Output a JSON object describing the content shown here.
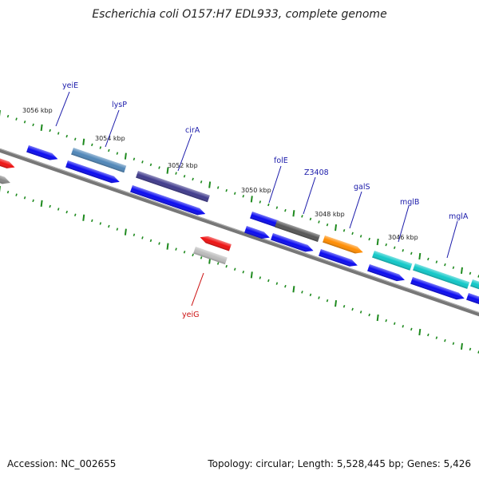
{
  "title": "Escherichia coli O157:H7 EDL933, complete genome",
  "accession": "Accession: NC_002655",
  "topology": "Topology: circular; Length: 5,528,445 bp; Genes: 5,426",
  "colors": {
    "background": "#ffffff",
    "backbone": "#777777",
    "tick": "#1e8a1e",
    "forward_label": "#1a1aaa",
    "reverse_label": "#cc1111",
    "cds_blue": "#0a0af0",
    "yeiE": "#0a0af0",
    "lysP": "#4f86b8",
    "cirA": "#3f3a8c",
    "folE": "#0a0af0",
    "Z3408": "#555555",
    "galS": "#ff8c00",
    "mglB": "#10c8c8",
    "mglA": "#10c8c8",
    "yeiG": "#ee1111",
    "yeiG_lower": "#bbbbbb"
  },
  "kbp_labels": [
    "3056 kbp",
    "3054 kbp",
    "3052 kbp",
    "3050 kbp",
    "3048 kbp",
    "3046 kbp"
  ],
  "genes": [
    {
      "name": "yeiE",
      "strand": "forward"
    },
    {
      "name": "lysP",
      "strand": "forward"
    },
    {
      "name": "cirA",
      "strand": "forward"
    },
    {
      "name": "folE",
      "strand": "forward"
    },
    {
      "name": "Z3408",
      "strand": "forward"
    },
    {
      "name": "galS",
      "strand": "forward"
    },
    {
      "name": "mglB",
      "strand": "forward"
    },
    {
      "name": "mglA",
      "strand": "forward"
    },
    {
      "name": "yeiG",
      "strand": "reverse"
    }
  ]
}
